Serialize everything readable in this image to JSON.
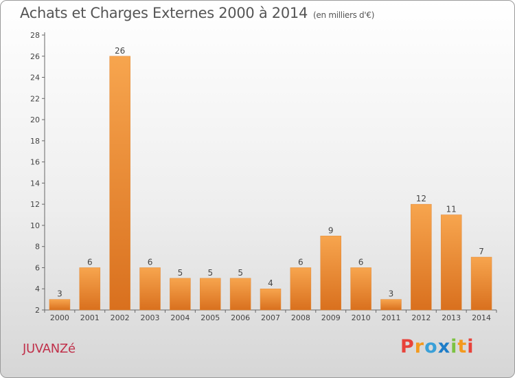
{
  "header": {
    "title": "Achats et Charges Externes 2000 à 2014",
    "unit": "(en milliers d'€)"
  },
  "footer": {
    "commune": "JUVANZé",
    "logo": "Proxiti"
  },
  "colors": {
    "bar_top": "#f7a54e",
    "bar_bottom": "#d9701e",
    "commune": "#c0304a",
    "logo_letters": [
      "#e8423a",
      "#f39a1e",
      "#3aa0d8",
      "#1e7dc8",
      "#7cc242",
      "#f39a1e",
      "#e8423a"
    ]
  },
  "chart_data": {
    "type": "bar",
    "title": "Achats et Charges Externes 2000 à 2014",
    "subtitle": "(en milliers d'€)",
    "xlabel": "",
    "ylabel": "",
    "categories": [
      "2000",
      "2001",
      "2002",
      "2003",
      "2004",
      "2005",
      "2006",
      "2007",
      "2008",
      "2009",
      "2010",
      "2011",
      "2012",
      "2013",
      "2014"
    ],
    "values": [
      3,
      6,
      26,
      6,
      5,
      5,
      5,
      4,
      6,
      9,
      6,
      3,
      12,
      11,
      7
    ],
    "ylim": [
      2,
      28
    ],
    "yticks": [
      2,
      4,
      6,
      8,
      10,
      12,
      14,
      16,
      18,
      20,
      22,
      24,
      26,
      28
    ],
    "grid": false,
    "data_labels": true
  }
}
